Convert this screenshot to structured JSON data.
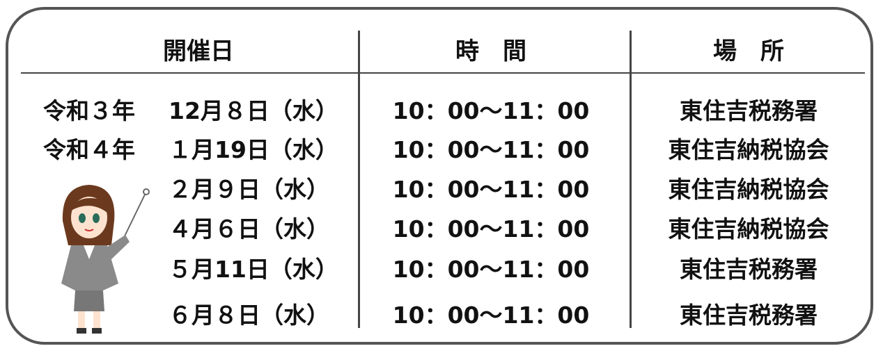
{
  "header": {
    "date": "開催日",
    "time": "時　間",
    "place": "場　所"
  },
  "rows": [
    {
      "year": "令和３年",
      "date": "12月８日（水）",
      "time": "10：00～11：00",
      "place": "東住吉税務署"
    },
    {
      "year": "令和４年",
      "date": "１月19日（水）",
      "time": "10：00～11：00",
      "place": "東住吉納税協会"
    },
    {
      "date": "２月９日（水）",
      "time": "10：00～11：00",
      "place": "東住吉納税協会"
    },
    {
      "date": "４月６日（水）",
      "time": "10：00～11：00",
      "place": "東住吉納税協会"
    },
    {
      "date": "５月11日（水）",
      "time": "10：00～11：00",
      "place": "東住吉税務署"
    },
    {
      "date": "６月８日（水）",
      "time": "10：00～11：00",
      "place": "東住吉税務署"
    }
  ]
}
